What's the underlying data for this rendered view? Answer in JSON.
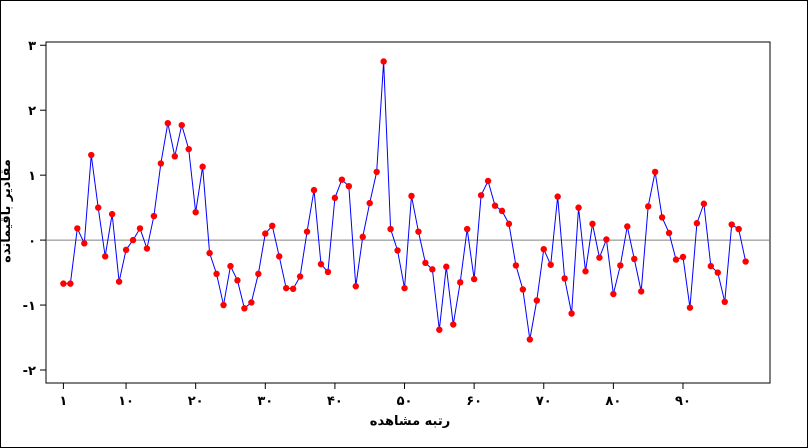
{
  "chart_data": {
    "type": "line",
    "xlabel": "رتبه مشاهده",
    "ylabel": "مقادیر باقیمانده",
    "x_ticks": [
      {
        "value": 1,
        "label": "۱"
      },
      {
        "value": 10,
        "label": "۱۰"
      },
      {
        "value": 20,
        "label": "۲۰"
      },
      {
        "value": 30,
        "label": "۳۰"
      },
      {
        "value": 40,
        "label": "۴۰"
      },
      {
        "value": 50,
        "label": "۵۰"
      },
      {
        "value": 60,
        "label": "۶۰"
      },
      {
        "value": 70,
        "label": "۷۰"
      },
      {
        "value": 80,
        "label": "۸۰"
      },
      {
        "value": 90,
        "label": "۹۰"
      }
    ],
    "y_ticks": [
      {
        "value": -2,
        "label": "-۲"
      },
      {
        "value": -1,
        "label": "-۱"
      },
      {
        "value": 0,
        "label": "۰"
      },
      {
        "value": 1,
        "label": "۱"
      },
      {
        "value": 2,
        "label": "۲"
      },
      {
        "value": 3,
        "label": "۳"
      }
    ],
    "xlim": [
      -1.5,
      102.5
    ],
    "ylim": [
      -2.2,
      3.05
    ],
    "reference_line": 0,
    "line_color": "#0000ff",
    "marker_color": "#ff0000",
    "reference_color": "#808080",
    "series": [
      {
        "values": [
          -0.67,
          -0.67,
          0.18,
          -0.05,
          1.31,
          0.5,
          -0.25,
          0.4,
          -0.64,
          -0.15,
          0.0,
          0.18,
          -0.13,
          0.37,
          1.18,
          1.8,
          1.29,
          1.77,
          1.4,
          0.43,
          1.13,
          -0.2,
          -0.52,
          -1.0,
          -0.4,
          -0.62,
          -1.05,
          -0.96,
          -0.52,
          0.1,
          0.22,
          -0.25,
          -0.74,
          -0.75,
          -0.56,
          0.13,
          0.77,
          -0.37,
          -0.49,
          0.65,
          0.93,
          0.83,
          -0.71,
          0.05,
          0.57,
          1.05,
          2.75,
          0.17,
          -0.16,
          -0.74,
          0.68,
          0.13,
          -0.35,
          -0.45,
          -1.38,
          -0.41,
          -1.3,
          -0.65,
          0.17,
          -0.6,
          0.69,
          0.91,
          0.53,
          0.45,
          0.25,
          -0.39,
          -0.76,
          -1.53,
          -0.93,
          -0.14,
          -0.38,
          0.67,
          -0.59,
          -1.13,
          0.5,
          -0.48,
          0.25,
          -0.27,
          0.01,
          -0.83,
          -0.39,
          0.21,
          -0.29,
          -0.79,
          0.52,
          1.05,
          0.35,
          0.11,
          -0.3,
          -0.26,
          -1.04,
          0.26,
          0.56,
          -0.4,
          -0.5,
          -0.95,
          0.24,
          0.17,
          -0.33
        ]
      }
    ]
  }
}
